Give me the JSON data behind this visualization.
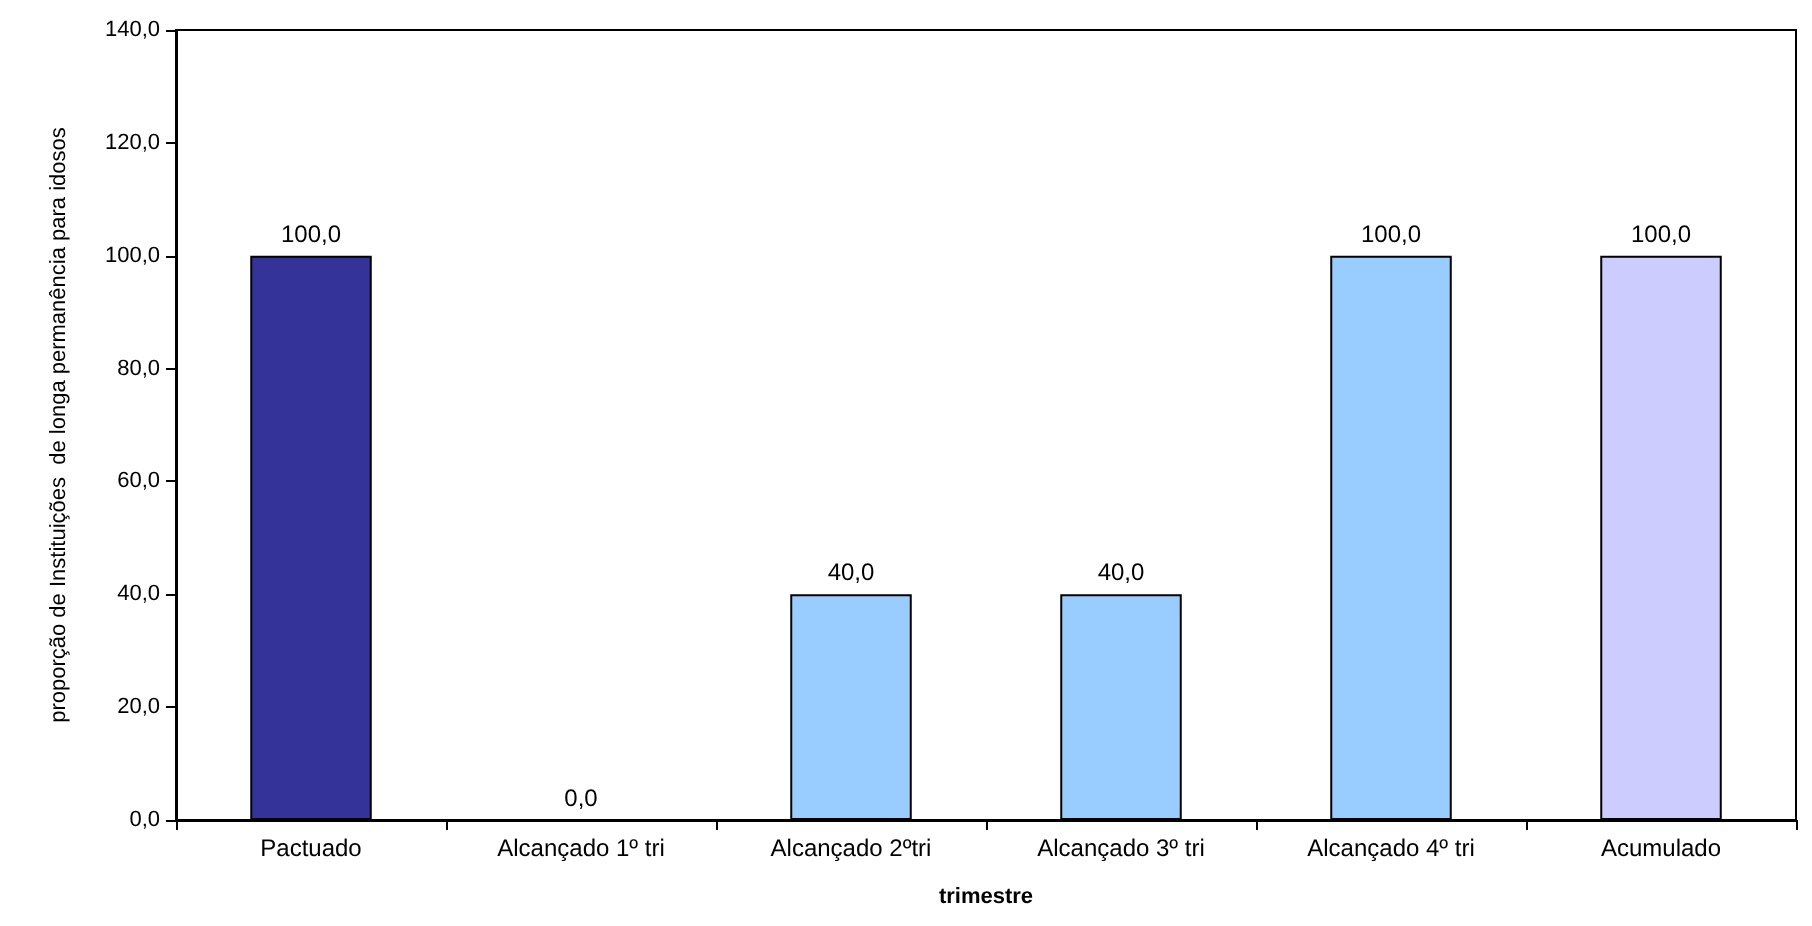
{
  "chart_data": {
    "type": "bar",
    "categories": [
      "Pactuado",
      "Alcançado 1º tri",
      "Alcançado 2ºtri",
      "Alcançado 3º tri",
      "Alcançado 4º tri",
      "Acumulado"
    ],
    "values": [
      100,
      0,
      40,
      40,
      100,
      100
    ],
    "colors": [
      "#333399",
      "#99ccff",
      "#99ccff",
      "#99ccff",
      "#99ccff",
      "#ccccff"
    ],
    "value_labels": [
      "100,0",
      "0,0",
      "40,0",
      "40,0",
      "100,0",
      "100,0"
    ],
    "xlabel": "trimestre",
    "ylabel": "proporção de Instituições  de longa permanência para idosos",
    "ylim": [
      0,
      140
    ],
    "yticks": [
      {
        "value": 0,
        "label": "0,0"
      },
      {
        "value": 20,
        "label": "20,0"
      },
      {
        "value": 40,
        "label": "40,0"
      },
      {
        "value": 60,
        "label": "60,0"
      },
      {
        "value": 80,
        "label": "80,0"
      },
      {
        "value": 100,
        "label": "100,0"
      },
      {
        "value": 120,
        "label": "120,0"
      },
      {
        "value": 140,
        "label": "140,0"
      }
    ],
    "grid": false
  }
}
